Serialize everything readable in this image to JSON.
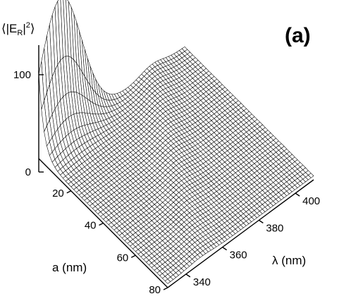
{
  "panel_label": "(a)",
  "chart_data": {
    "type": "surface3d",
    "z_axis": {
      "label_parts": [
        "⟨|E",
        "R",
        "|",
        "2",
        "⟩"
      ],
      "ticks": [
        0,
        100
      ],
      "range": [
        0,
        150
      ]
    },
    "a_axis": {
      "label": "a (nm)",
      "ticks": [
        20,
        40,
        60,
        80
      ],
      "range": [
        0,
        80
      ]
    },
    "lambda_axis": {
      "label": "λ (nm)",
      "ticks": [
        340,
        360,
        380,
        400
      ],
      "range": [
        330,
        410
      ]
    },
    "surface": {
      "description_values": [
        {
          "a": 0,
          "lambda": 330,
          "value": 150
        },
        {
          "a": 0,
          "lambda": 345,
          "value": 120
        },
        {
          "a": 0,
          "lambda": 360,
          "value": 60
        },
        {
          "a": 0,
          "lambda": 380,
          "value": 15
        },
        {
          "a": 0,
          "lambda": 410,
          "value": 5
        },
        {
          "a": 20,
          "lambda": 380,
          "value": 10
        },
        {
          "a": 40,
          "lambda": 370,
          "value": 12
        },
        {
          "a": 80,
          "lambda": 350,
          "value": 8
        }
      ]
    }
  }
}
